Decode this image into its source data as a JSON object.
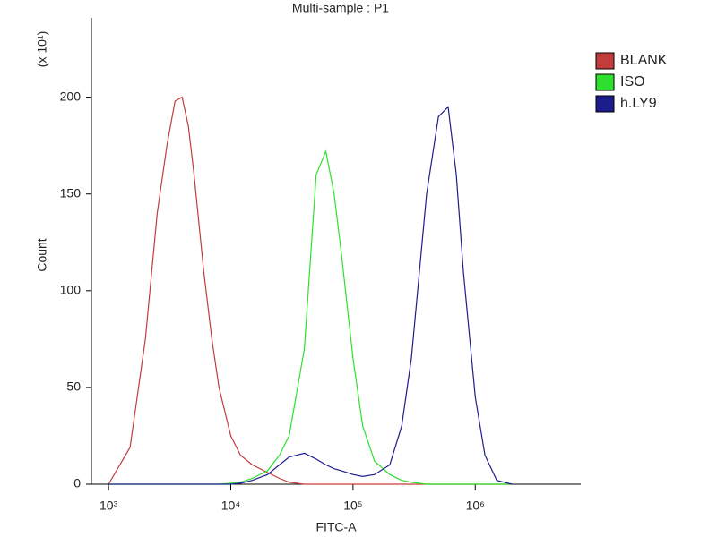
{
  "chart_data": {
    "type": "line",
    "title": "Multi-sample : P1",
    "x_label": "FITC-A",
    "y_label": "Count",
    "y_unit_label": "(x 10¹)",
    "log_x": true,
    "x": [
      1000,
      1500,
      2000,
      2500,
      3000,
      3500,
      4000,
      4500,
      5000,
      6000,
      7000,
      8000,
      10000,
      12000,
      15000,
      20000,
      25000,
      30000,
      40000,
      50000,
      60000,
      70000,
      80000,
      100000,
      120000,
      150000,
      200000,
      250000,
      300000,
      400000,
      500000,
      600000,
      700000,
      800000,
      1000000,
      1200000,
      1500000,
      2000000
    ],
    "series": [
      {
        "name": "BLANK",
        "color": "#c43b3b",
        "values": [
          0,
          19,
          75,
          140,
          175,
          198,
          200,
          185,
          160,
          110,
          75,
          50,
          25,
          15,
          10,
          6,
          3,
          1,
          0,
          0,
          0,
          0,
          0,
          0,
          0,
          0,
          0,
          0,
          0,
          0,
          0,
          0,
          0,
          0,
          0,
          0,
          0,
          0
        ]
      },
      {
        "name": "ISO",
        "color": "#2ee02e",
        "values": [
          0,
          0,
          0,
          0,
          0,
          0,
          0,
          0,
          0,
          0,
          0,
          0,
          0.5,
          1,
          3,
          7,
          15,
          25,
          70,
          160,
          172,
          150,
          120,
          65,
          30,
          12,
          5,
          2,
          1,
          0,
          0,
          0,
          0,
          0,
          0,
          0,
          0,
          0
        ]
      },
      {
        "name": "h.LY9",
        "color": "#1c1c8c",
        "values": [
          0,
          0,
          0,
          0,
          0,
          0,
          0,
          0,
          0,
          0,
          0,
          0,
          0,
          0.5,
          2,
          5,
          10,
          14,
          16,
          13,
          10,
          8,
          7,
          5,
          4,
          5,
          10,
          30,
          65,
          150,
          190,
          195,
          160,
          110,
          45,
          15,
          2,
          0
        ]
      }
    ],
    "xlim": [
      724,
      7300000
    ],
    "xticks": [
      {
        "value": 1000,
        "label": "10³"
      },
      {
        "value": 10000,
        "label": "10⁴"
      },
      {
        "value": 100000,
        "label": "10⁵"
      },
      {
        "value": 1000000,
        "label": "10⁶"
      }
    ],
    "ylim": [
      0,
      241
    ],
    "yticks": [
      0,
      50,
      100,
      150,
      200
    ],
    "legend": "right"
  }
}
